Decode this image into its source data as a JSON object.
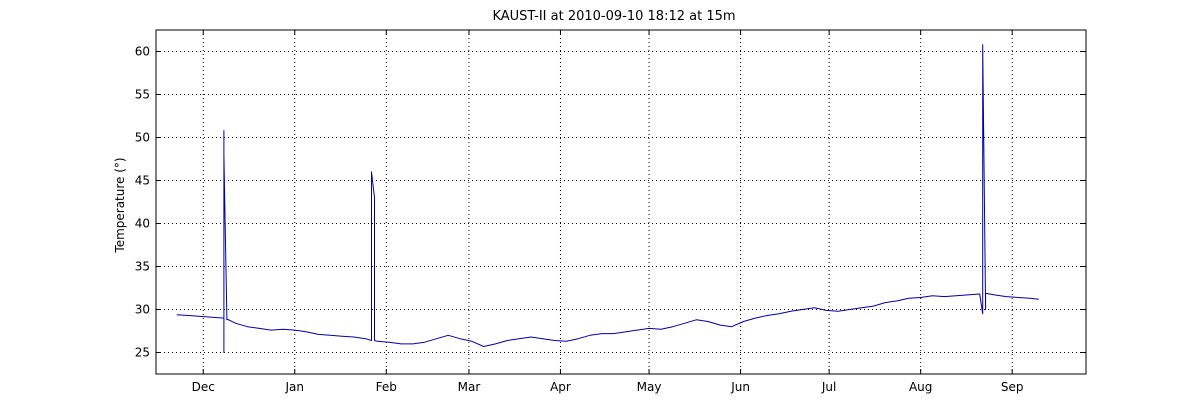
{
  "chart_data": {
    "type": "line",
    "title": "KAUST-II at 2010-09-10 18:12 at 15m",
    "ylabel": "Temperature (°)",
    "xlabel": "",
    "x_tick_labels": [
      "Dec",
      "Jan",
      "Feb",
      "Mar",
      "Apr",
      "May",
      "Jun",
      "Jul",
      "Aug",
      "Sep"
    ],
    "x_tick_dates": [
      "2009-12-01",
      "2010-01-01",
      "2010-02-01",
      "2010-03-01",
      "2010-04-01",
      "2010-05-01",
      "2010-06-01",
      "2010-07-01",
      "2010-08-01",
      "2010-09-01"
    ],
    "y_ticks": [
      25,
      30,
      35,
      40,
      45,
      50,
      55,
      60
    ],
    "xlim": [
      "2009-11-15",
      "2010-09-26"
    ],
    "ylim": [
      22.5,
      62.5
    ],
    "grid": true,
    "series": [
      {
        "color": "#0000aa",
        "x": [
          "2009-11-22",
          "2009-11-26",
          "2009-11-30",
          "2009-12-04",
          "2009-12-08",
          "2009-12-08",
          "2009-12-08",
          "2009-12-08",
          "2009-12-09",
          "2009-12-09",
          "2009-12-12",
          "2009-12-16",
          "2009-12-20",
          "2009-12-24",
          "2009-12-28",
          "2010-01-01",
          "2010-01-05",
          "2010-01-09",
          "2010-01-13",
          "2010-01-17",
          "2010-01-21",
          "2010-01-25",
          "2010-01-27",
          "2010-01-27",
          "2010-01-28",
          "2010-01-28",
          "2010-01-29",
          "2010-02-02",
          "2010-02-06",
          "2010-02-10",
          "2010-02-14",
          "2010-02-18",
          "2010-02-22",
          "2010-02-26",
          "2010-03-02",
          "2010-03-06",
          "2010-03-10",
          "2010-03-14",
          "2010-03-18",
          "2010-03-22",
          "2010-03-26",
          "2010-03-30",
          "2010-04-03",
          "2010-04-07",
          "2010-04-11",
          "2010-04-15",
          "2010-04-19",
          "2010-04-23",
          "2010-04-27",
          "2010-05-01",
          "2010-05-05",
          "2010-05-09",
          "2010-05-13",
          "2010-05-17",
          "2010-05-21",
          "2010-05-25",
          "2010-05-29",
          "2010-06-02",
          "2010-06-06",
          "2010-06-10",
          "2010-06-14",
          "2010-06-18",
          "2010-06-22",
          "2010-06-26",
          "2010-06-30",
          "2010-07-04",
          "2010-07-08",
          "2010-07-12",
          "2010-07-16",
          "2010-07-20",
          "2010-07-24",
          "2010-07-28",
          "2010-08-01",
          "2010-08-05",
          "2010-08-09",
          "2010-08-13",
          "2010-08-17",
          "2010-08-21",
          "2010-08-22",
          "2010-08-22",
          "2010-08-23",
          "2010-08-23",
          "2010-08-26",
          "2010-08-30",
          "2010-09-03",
          "2010-09-07",
          "2010-09-10"
        ],
        "y": [
          29.4,
          29.3,
          29.2,
          29.1,
          29.0,
          25.0,
          50.8,
          48.0,
          28.8,
          28.9,
          28.4,
          28.0,
          27.8,
          27.6,
          27.7,
          27.6,
          27.4,
          27.1,
          27.0,
          26.9,
          26.8,
          26.6,
          26.4,
          46.0,
          43.0,
          26.4,
          26.3,
          26.2,
          26.0,
          26.0,
          26.2,
          26.6,
          27.0,
          26.6,
          26.3,
          25.7,
          26.0,
          26.4,
          26.6,
          26.8,
          26.6,
          26.4,
          26.3,
          26.6,
          27.0,
          27.2,
          27.2,
          27.4,
          27.6,
          27.8,
          27.7,
          28.0,
          28.4,
          28.8,
          28.6,
          28.2,
          28.0,
          28.6,
          29.0,
          29.3,
          29.5,
          29.8,
          30.0,
          30.2,
          29.9,
          29.8,
          30.0,
          30.2,
          30.4,
          30.8,
          31.0,
          31.3,
          31.4,
          31.6,
          31.5,
          31.6,
          31.7,
          31.8,
          29.5,
          60.8,
          30.0,
          31.9,
          31.7,
          31.5,
          31.4,
          31.3,
          31.2
        ]
      }
    ]
  }
}
